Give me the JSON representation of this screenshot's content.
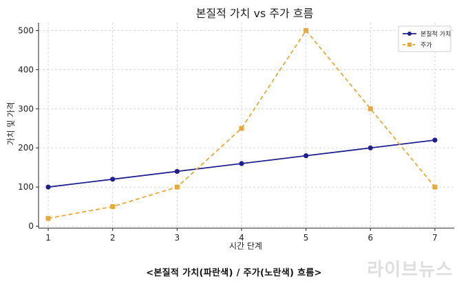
{
  "chart_data": {
    "type": "line",
    "title": "본질적 가치 vs 주가 흐름",
    "xlabel": "시간 단계",
    "ylabel": "가치 및 가격",
    "x": [
      1,
      2,
      3,
      4,
      5,
      6,
      7
    ],
    "xlim": [
      0.85,
      7.3
    ],
    "ylim": [
      -5,
      520
    ],
    "xticks": [
      1,
      2,
      3,
      4,
      5,
      6,
      7
    ],
    "yticks": [
      0,
      100,
      200,
      300,
      400,
      500
    ],
    "grid": true,
    "legend_position": "top-right",
    "series": [
      {
        "name": "본질적 가치",
        "values": [
          100,
          120,
          140,
          160,
          180,
          200,
          220
        ],
        "color": "#1f1f8f",
        "marker": "circle",
        "dash": "solid"
      },
      {
        "name": "주가",
        "values": [
          20,
          50,
          100,
          250,
          500,
          300,
          100
        ],
        "color": "#e8a93a",
        "marker": "square",
        "dash": "dashed"
      }
    ]
  },
  "caption": "<본질적 가치(파란색) / 주가(노란색) 흐름>",
  "watermark": "라이브뉴스"
}
